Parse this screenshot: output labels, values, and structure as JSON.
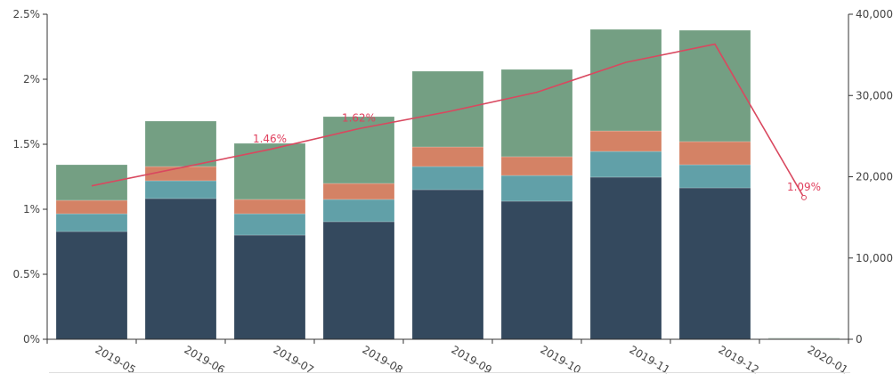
{
  "chart_data": {
    "type": "bar",
    "subtype": "stacked-bar-with-line",
    "categories": [
      "2019-05",
      "2019-06",
      "2019-07",
      "2019-08",
      "2019-09",
      "2019-10",
      "2019-11",
      "2019-12",
      "2020-01"
    ],
    "series": [
      {
        "type": "bar",
        "axis": "right",
        "color": "#34495e",
        "values": [
          13260,
          17320,
          12820,
          14470,
          18410,
          16990,
          19950,
          18630,
          60
        ]
      },
      {
        "type": "bar",
        "axis": "right",
        "color": "#61a0a8",
        "values": [
          2190,
          2190,
          2630,
          2740,
          2850,
          3170,
          3170,
          2850,
          20
        ]
      },
      {
        "type": "bar",
        "axis": "right",
        "color": "#d48265",
        "values": [
          1650,
          1750,
          1760,
          1970,
          2410,
          2310,
          2520,
          2850,
          10
        ]
      },
      {
        "type": "bar",
        "axis": "right",
        "color": "#749f83",
        "values": [
          4380,
          5590,
          6900,
          8220,
          9320,
          10740,
          12500,
          13700,
          60
        ]
      },
      {
        "type": "line",
        "axis": "left",
        "color": "#d9485f",
        "values": [
          1.18,
          1.32,
          1.46,
          1.62,
          1.75,
          1.9,
          2.13,
          2.27,
          1.09
        ]
      }
    ],
    "line_labels": [
      {
        "category": "2019-07",
        "text": "1.46%"
      },
      {
        "category": "2019-08",
        "text": "1.62%"
      },
      {
        "category": "2020-01",
        "text": "1.09%"
      }
    ],
    "left_axis": {
      "range": [
        0,
        2.5
      ],
      "ticks": [
        "0%",
        "0.5%",
        "1%",
        "1.5%",
        "2%",
        "2.5%"
      ]
    },
    "right_axis": {
      "range": [
        0,
        40000
      ],
      "ticks": [
        "0",
        "10,000",
        "20,000",
        "30,000",
        "40,000"
      ]
    },
    "grid": false,
    "legend": "none"
  }
}
